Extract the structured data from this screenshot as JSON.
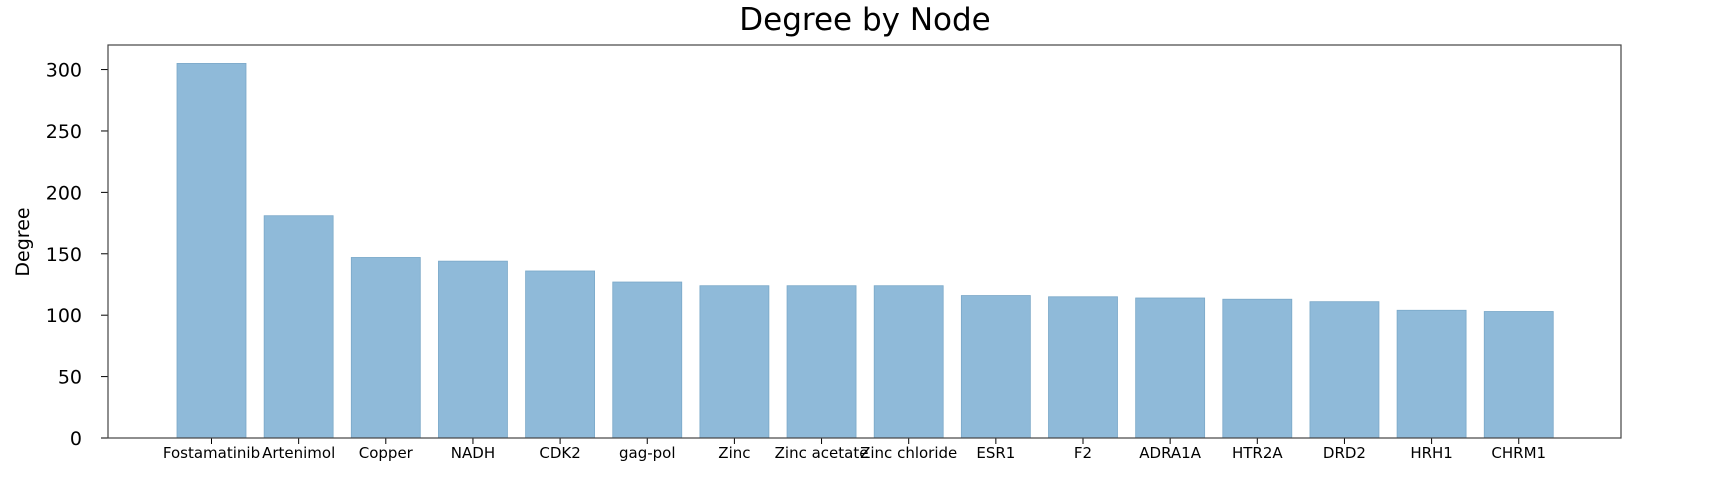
{
  "chart_data": {
    "type": "bar",
    "title": "Degree by Node",
    "xlabel": "",
    "ylabel": "Degree",
    "categories": [
      "Fostamatinib",
      "Artenimol",
      "Copper",
      "NADH",
      "CDK2",
      "gag-pol",
      "Zinc",
      "Zinc acetate",
      "Zinc chloride",
      "ESR1",
      "F2",
      "ADRA1A",
      "HTR2A",
      "DRD2",
      "HRH1",
      "CHRM1"
    ],
    "values": [
      305,
      181,
      147,
      144,
      136,
      127,
      124,
      124,
      124,
      116,
      115,
      114,
      113,
      111,
      104,
      103
    ],
    "ylim": [
      0,
      320
    ],
    "yticks": [
      0,
      50,
      100,
      150,
      200,
      250,
      300
    ],
    "grid": false,
    "bar_color": "#8fbad9"
  }
}
